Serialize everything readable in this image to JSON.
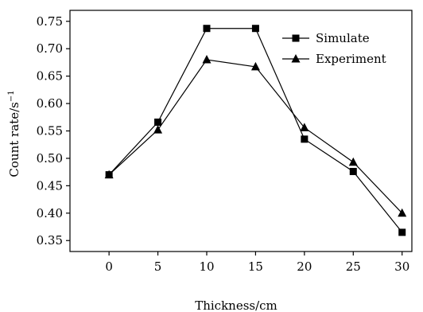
{
  "chart_data": {
    "type": "line",
    "title": "",
    "xlabel": "Thickness/cm",
    "ylabel": "Count rate/s",
    "ylabel_superscript": "−1",
    "x": [
      0,
      5,
      10,
      15,
      20,
      25,
      30
    ],
    "x_ticks": [
      "0",
      "5",
      "10",
      "15",
      "20",
      "25",
      "30"
    ],
    "y_ticks": [
      "0.35",
      "0.40",
      "0.45",
      "0.50",
      "0.55",
      "0.60",
      "0.65",
      "0.70",
      "0.75"
    ],
    "xlim": [
      -4,
      31
    ],
    "ylim": [
      0.33,
      0.77
    ],
    "grid": false,
    "legend_position": "top-right",
    "series": [
      {
        "name": "Simulate",
        "marker": "square",
        "values": [
          0.47,
          0.566,
          0.737,
          0.737,
          0.535,
          0.476,
          0.365
        ]
      },
      {
        "name": "Experiment",
        "marker": "triangle",
        "values": [
          0.47,
          0.552,
          0.68,
          0.667,
          0.556,
          0.493,
          0.4
        ]
      }
    ]
  }
}
